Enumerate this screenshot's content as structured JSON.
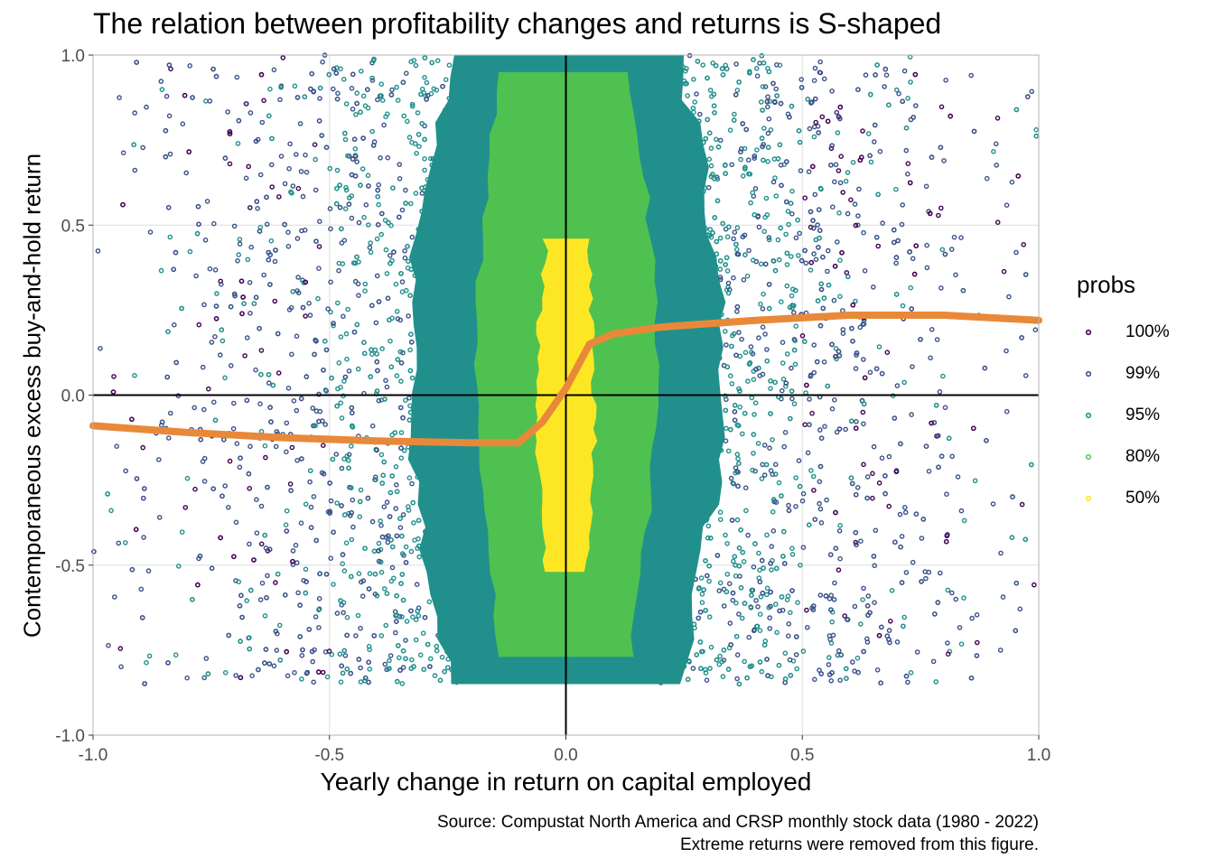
{
  "chart_data": {
    "type": "scatter",
    "title": "The relation between profitability changes and returns is S-shaped",
    "xlabel": "Yearly change in return on capital employed",
    "ylabel": "Contemporaneous excess buy-and-hold return",
    "xlim": [
      -1.0,
      1.0
    ],
    "ylim": [
      -1.0,
      1.0
    ],
    "x_ticks": [
      "-1.0",
      "-0.5",
      "0.0",
      "0.5",
      "1.0"
    ],
    "y_ticks": [
      "-1.0",
      "-0.5",
      "0.0",
      "0.5",
      "1.0"
    ],
    "grid": true,
    "reference_lines": {
      "x": 0.0,
      "y": 0.0
    },
    "legend": {
      "title": "probs",
      "placement": "right",
      "entries": [
        {
          "label": "100%",
          "color": "#440154"
        },
        {
          "label": "99%",
          "color": "#3b528b"
        },
        {
          "label": "95%",
          "color": "#21908c"
        },
        {
          "label": "80%",
          "color": "#5dc863"
        },
        {
          "label": "50%",
          "color": "#fde725"
        }
      ]
    },
    "density_regions": [
      {
        "prob": "50%",
        "color": "#fde725",
        "x_range": [
          -0.06,
          0.06
        ],
        "y_range": [
          -0.52,
          0.46
        ]
      },
      {
        "prob": "80%",
        "color": "#4fc150",
        "x_range": [
          -0.19,
          0.19
        ],
        "y_range": [
          -0.77,
          0.95
        ]
      },
      {
        "prob": "95%",
        "color": "#21908c",
        "x_range": [
          -0.33,
          0.33
        ],
        "y_range": [
          -0.85,
          1.0
        ]
      }
    ],
    "smooth_line": {
      "color": "#e8893a",
      "x": [
        -1.0,
        -0.8,
        -0.6,
        -0.4,
        -0.2,
        -0.1,
        -0.05,
        0.0,
        0.05,
        0.1,
        0.2,
        0.4,
        0.6,
        0.8,
        1.0
      ],
      "y": [
        -0.09,
        -0.11,
        -0.125,
        -0.135,
        -0.14,
        -0.14,
        -0.08,
        0.02,
        0.15,
        0.18,
        0.2,
        0.22,
        0.235,
        0.235,
        0.22
      ]
    }
  },
  "caption": {
    "line1": "Source: Compustat North America and CRSP monthly stock data (1980 - 2022)",
    "line2": "Extreme returns were removed from this figure."
  }
}
